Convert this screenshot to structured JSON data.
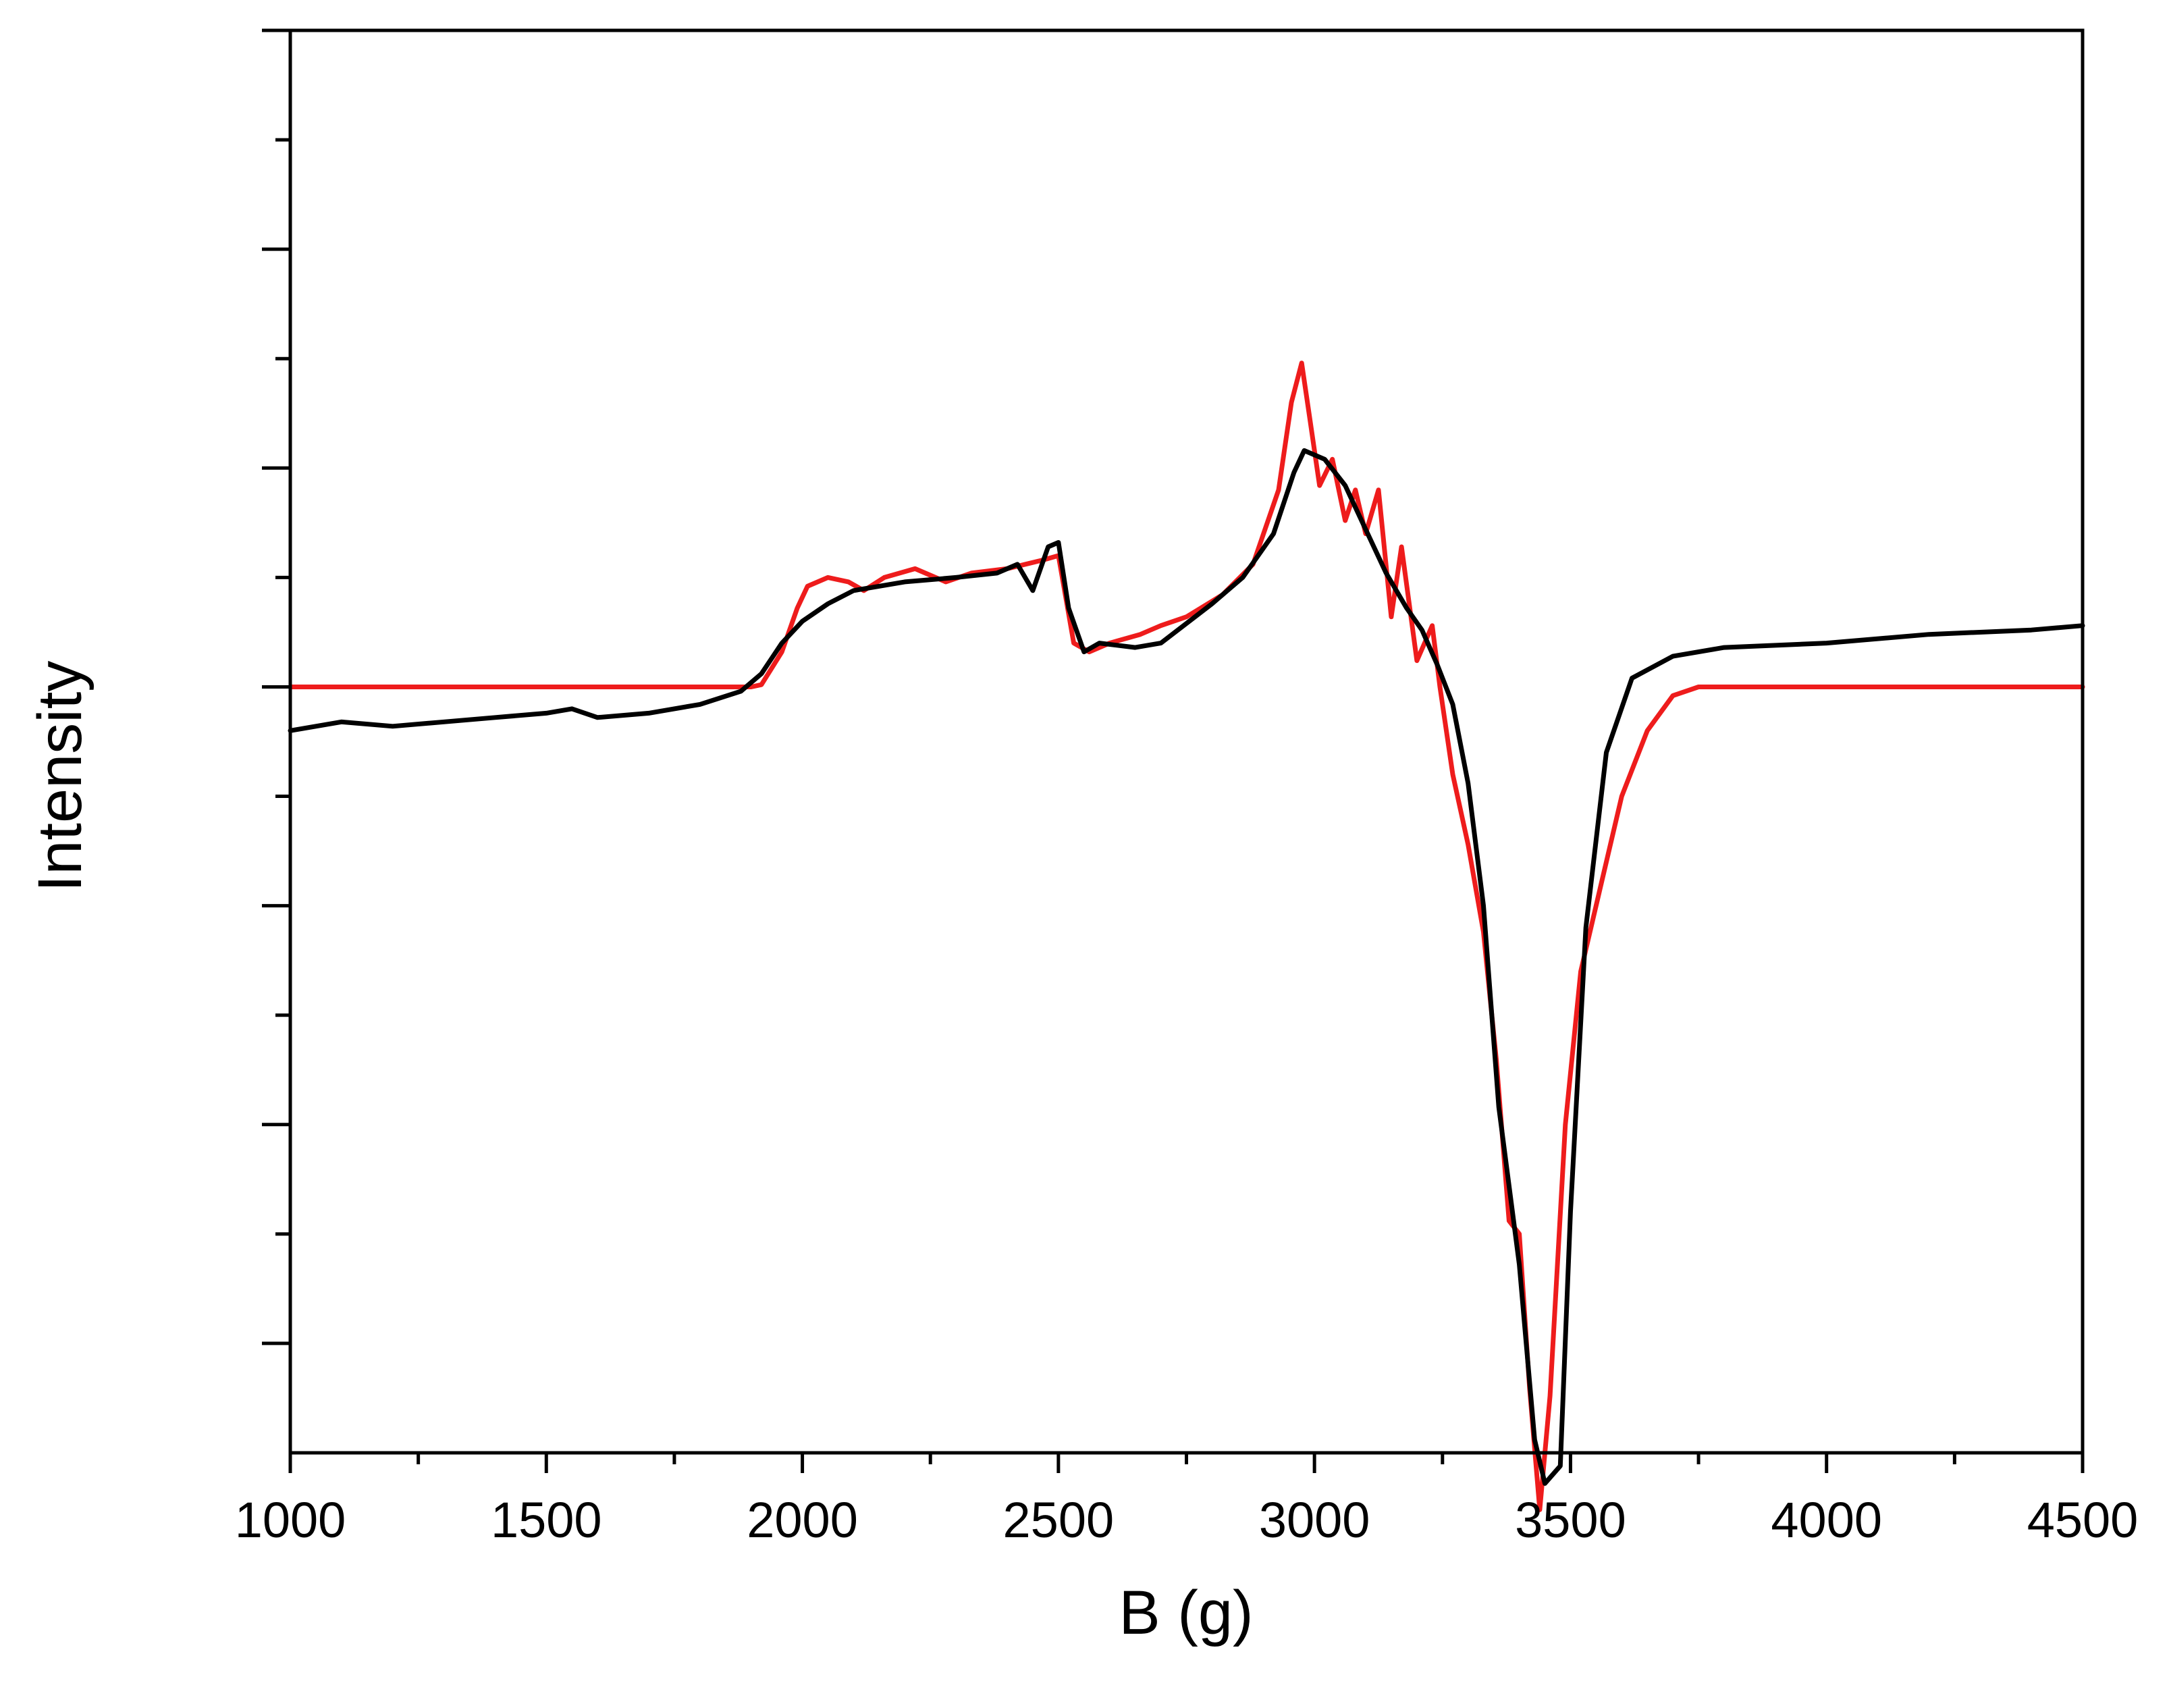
{
  "chart_data": {
    "type": "line",
    "title": "",
    "xlabel": "B (g)",
    "ylabel": "Intensity",
    "xlim": [
      1000,
      4500
    ],
    "ylim": [
      -1.75,
      1.5
    ],
    "x_ticks": [
      1000,
      1500,
      2000,
      2500,
      3000,
      3500,
      4000,
      4500
    ],
    "y_tick_labels_shown": false,
    "grid": false,
    "legend": "none",
    "colors": {
      "axis": "#000000",
      "simulated": "#ee1c1c",
      "experimental": "#000000"
    },
    "series": [
      {
        "color": "#ee1c1c",
        "points": [
          [
            1000,
            0.0
          ],
          [
            1900,
            0.0
          ],
          [
            1920,
            0.005
          ],
          [
            1960,
            0.08
          ],
          [
            1990,
            0.18
          ],
          [
            2010,
            0.23
          ],
          [
            2050,
            0.25
          ],
          [
            2090,
            0.24
          ],
          [
            2120,
            0.22
          ],
          [
            2160,
            0.25
          ],
          [
            2220,
            0.27
          ],
          [
            2280,
            0.24
          ],
          [
            2330,
            0.26
          ],
          [
            2400,
            0.27
          ],
          [
            2470,
            0.29
          ],
          [
            2500,
            0.3
          ],
          [
            2530,
            0.1
          ],
          [
            2560,
            0.08
          ],
          [
            2600,
            0.1
          ],
          [
            2660,
            0.12
          ],
          [
            2700,
            0.14
          ],
          [
            2750,
            0.16
          ],
          [
            2820,
            0.21
          ],
          [
            2880,
            0.28
          ],
          [
            2930,
            0.45
          ],
          [
            2955,
            0.65
          ],
          [
            2975,
            0.74
          ],
          [
            2990,
            0.62
          ],
          [
            3010,
            0.46
          ],
          [
            3035,
            0.52
          ],
          [
            3060,
            0.38
          ],
          [
            3080,
            0.45
          ],
          [
            3100,
            0.35
          ],
          [
            3125,
            0.45
          ],
          [
            3150,
            0.16
          ],
          [
            3170,
            0.32
          ],
          [
            3200,
            0.06
          ],
          [
            3230,
            0.14
          ],
          [
            3245,
            0.0
          ],
          [
            3270,
            -0.2
          ],
          [
            3300,
            -0.36
          ],
          [
            3330,
            -0.56
          ],
          [
            3355,
            -0.85
          ],
          [
            3380,
            -1.22
          ],
          [
            3400,
            -1.25
          ],
          [
            3420,
            -1.6
          ],
          [
            3440,
            -1.88
          ],
          [
            3460,
            -1.62
          ],
          [
            3490,
            -1.0
          ],
          [
            3520,
            -0.65
          ],
          [
            3560,
            -0.45
          ],
          [
            3600,
            -0.25
          ],
          [
            3650,
            -0.1
          ],
          [
            3700,
            -0.02
          ],
          [
            3750,
            0.0
          ],
          [
            4500,
            0.0
          ]
        ]
      },
      {
        "color": "#000000",
        "points": [
          [
            1000,
            -0.1
          ],
          [
            1100,
            -0.08
          ],
          [
            1200,
            -0.09
          ],
          [
            1300,
            -0.08
          ],
          [
            1400,
            -0.07
          ],
          [
            1500,
            -0.06
          ],
          [
            1550,
            -0.05
          ],
          [
            1600,
            -0.07
          ],
          [
            1700,
            -0.06
          ],
          [
            1800,
            -0.04
          ],
          [
            1880,
            -0.01
          ],
          [
            1920,
            0.03
          ],
          [
            1960,
            0.1
          ],
          [
            2000,
            0.15
          ],
          [
            2050,
            0.19
          ],
          [
            2100,
            0.22
          ],
          [
            2200,
            0.24
          ],
          [
            2300,
            0.25
          ],
          [
            2380,
            0.26
          ],
          [
            2420,
            0.28
          ],
          [
            2450,
            0.22
          ],
          [
            2480,
            0.32
          ],
          [
            2500,
            0.33
          ],
          [
            2520,
            0.18
          ],
          [
            2550,
            0.08
          ],
          [
            2580,
            0.1
          ],
          [
            2650,
            0.09
          ],
          [
            2700,
            0.1
          ],
          [
            2800,
            0.19
          ],
          [
            2860,
            0.25
          ],
          [
            2920,
            0.35
          ],
          [
            2960,
            0.49
          ],
          [
            2980,
            0.54
          ],
          [
            3020,
            0.52
          ],
          [
            3060,
            0.46
          ],
          [
            3100,
            0.36
          ],
          [
            3140,
            0.26
          ],
          [
            3180,
            0.18
          ],
          [
            3210,
            0.13
          ],
          [
            3240,
            0.05
          ],
          [
            3270,
            -0.04
          ],
          [
            3300,
            -0.22
          ],
          [
            3330,
            -0.5
          ],
          [
            3360,
            -0.96
          ],
          [
            3400,
            -1.32
          ],
          [
            3430,
            -1.72
          ],
          [
            3450,
            -1.82
          ],
          [
            3480,
            -1.78
          ],
          [
            3500,
            -1.2
          ],
          [
            3530,
            -0.55
          ],
          [
            3570,
            -0.15
          ],
          [
            3620,
            0.02
          ],
          [
            3700,
            0.07
          ],
          [
            3800,
            0.09
          ],
          [
            4000,
            0.1
          ],
          [
            4200,
            0.12
          ],
          [
            4400,
            0.13
          ],
          [
            4500,
            0.14
          ]
        ]
      }
    ]
  }
}
